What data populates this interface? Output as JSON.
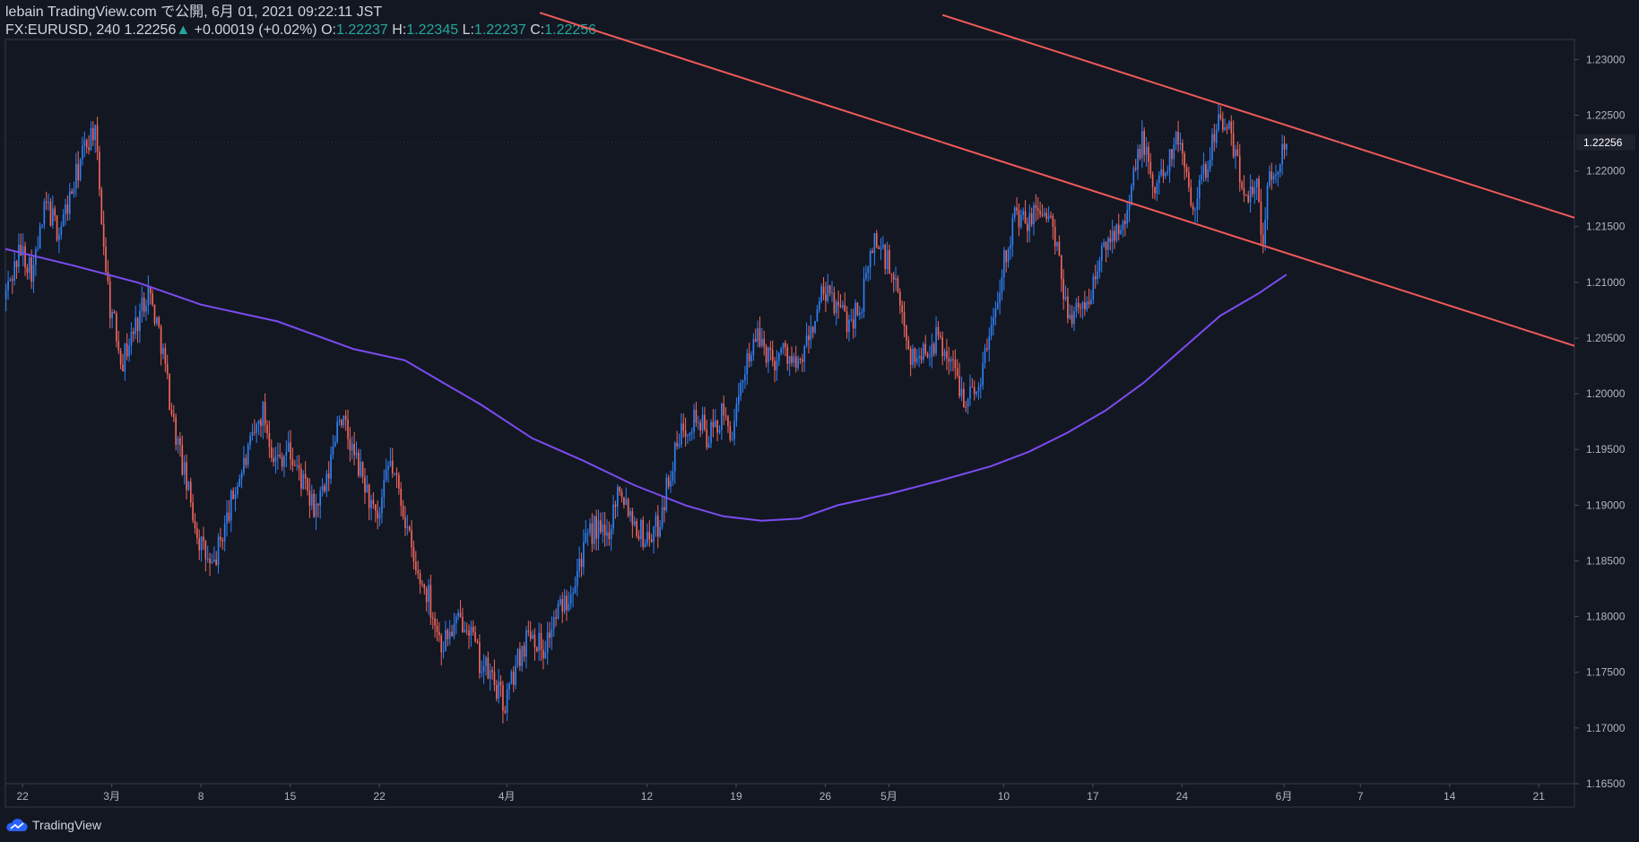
{
  "header": {
    "published_line": "lebain TradingView.com で公開, 6月 01, 2021 09:22:11 JST",
    "symbol": "FX:EURUSD, 240",
    "last_price": "1.22256",
    "arrow": "▲",
    "change": "+0.00019 (+0.02%)",
    "o_label": "O:",
    "o_value": "1.22237",
    "h_label": "H:",
    "h_value": "1.22345",
    "l_label": "L:",
    "l_value": "1.22237",
    "c_label": "C:",
    "c_value": "1.22256"
  },
  "footer": {
    "brand": "TradingView"
  },
  "colors": {
    "background": "#131722",
    "up": "#2f81f7",
    "down": "#f0665c",
    "trendline": "#f05a5a",
    "ma": "#7b4cf0",
    "axis_text": "#b2b5be",
    "price_tag_bg": "#1e222d"
  },
  "icons": {
    "logo": "tradingview-cloud-icon",
    "arrow": "up-triangle-icon"
  },
  "chart_data": {
    "type": "candlestick",
    "symbol": "FX:EURUSD",
    "interval": "240",
    "ylim": [
      1.165,
      1.2318
    ],
    "y_ticks": [
      "1.16500",
      "1.17000",
      "1.17500",
      "1.18000",
      "1.18500",
      "1.19000",
      "1.19500",
      "1.20000",
      "1.20500",
      "1.21000",
      "1.21500",
      "1.22000",
      "1.22500",
      "1.23000"
    ],
    "x_ticks": [
      {
        "label": "22",
        "day": 0
      },
      {
        "label": "3月",
        "day": 7
      },
      {
        "label": "8",
        "day": 14
      },
      {
        "label": "15",
        "day": 21
      },
      {
        "label": "22",
        "day": 28
      },
      {
        "label": "4月",
        "day": 38
      },
      {
        "label": "12",
        "day": 49
      },
      {
        "label": "19",
        "day": 56
      },
      {
        "label": "26",
        "day": 63
      },
      {
        "label": "5月",
        "day": 68
      },
      {
        "label": "10",
        "day": 77
      },
      {
        "label": "17",
        "day": 84
      },
      {
        "label": "24",
        "day": 91
      },
      {
        "label": "6月",
        "day": 99
      },
      {
        "label": "7",
        "day": 105
      },
      {
        "label": "14",
        "day": 112
      },
      {
        "label": "21",
        "day": 119
      }
    ],
    "x_range_days": [
      -1.35,
      121.8
    ],
    "candles_per_day": 6,
    "last_candle_day": 99.2,
    "current_price": 1.22256,
    "current_price_label": "1.22256",
    "price_path": [
      [
        -1.3,
        1.2085
      ],
      [
        0,
        1.213
      ],
      [
        1,
        1.211
      ],
      [
        2,
        1.217
      ],
      [
        3,
        1.2145
      ],
      [
        4,
        1.218
      ],
      [
        5,
        1.222
      ],
      [
        5.8,
        1.224
      ],
      [
        6.5,
        1.214
      ],
      [
        7,
        1.208
      ],
      [
        8,
        1.203
      ],
      [
        9,
        1.206
      ],
      [
        10,
        1.2095
      ],
      [
        11,
        1.205
      ],
      [
        12,
        1.1975
      ],
      [
        13,
        1.192
      ],
      [
        14,
        1.187
      ],
      [
        15,
        1.184
      ],
      [
        16,
        1.188
      ],
      [
        17,
        1.192
      ],
      [
        18,
        1.195
      ],
      [
        19,
        1.1985
      ],
      [
        20,
        1.194
      ],
      [
        21,
        1.195
      ],
      [
        22,
        1.1925
      ],
      [
        23,
        1.1895
      ],
      [
        24,
        1.1915
      ],
      [
        25,
        1.1985
      ],
      [
        26,
        1.195
      ],
      [
        27,
        1.192
      ],
      [
        28,
        1.188
      ],
      [
        29,
        1.194
      ],
      [
        30,
        1.19
      ],
      [
        31,
        1.184
      ],
      [
        32,
        1.182
      ],
      [
        33,
        1.1775
      ],
      [
        34,
        1.179
      ],
      [
        35,
        1.18
      ],
      [
        36,
        1.176
      ],
      [
        37,
        1.1745
      ],
      [
        38,
        1.172
      ],
      [
        39,
        1.176
      ],
      [
        40,
        1.179
      ],
      [
        41,
        1.177
      ],
      [
        42,
        1.18
      ],
      [
        43,
        1.182
      ],
      [
        44,
        1.1855
      ],
      [
        45,
        1.188
      ],
      [
        46,
        1.187
      ],
      [
        47,
        1.192
      ],
      [
        48,
        1.189
      ],
      [
        49,
        1.187
      ],
      [
        50,
        1.188
      ],
      [
        51,
        1.193
      ],
      [
        52,
        1.197
      ],
      [
        53,
        1.198
      ],
      [
        54,
        1.196
      ],
      [
        55,
        1.198
      ],
      [
        56,
        1.1965
      ],
      [
        57,
        1.2035
      ],
      [
        58,
        1.205
      ],
      [
        59,
        1.203
      ],
      [
        60,
        1.204
      ],
      [
        61,
        1.202
      ],
      [
        62,
        1.2055
      ],
      [
        63,
        1.209
      ],
      [
        64,
        1.208
      ],
      [
        65,
        1.2065
      ],
      [
        66,
        1.208
      ],
      [
        67,
        1.214
      ],
      [
        68,
        1.212
      ],
      [
        69,
        1.208
      ],
      [
        70,
        1.203
      ],
      [
        71,
        1.204
      ],
      [
        72,
        1.205
      ],
      [
        73,
        1.203
      ],
      [
        74,
        1.2
      ],
      [
        75,
        1.2
      ],
      [
        76,
        1.205
      ],
      [
        77,
        1.211
      ],
      [
        78,
        1.216
      ],
      [
        79,
        1.215
      ],
      [
        80,
        1.217
      ],
      [
        81,
        1.215
      ],
      [
        82,
        1.208
      ],
      [
        83,
        1.207
      ],
      [
        84,
        1.209
      ],
      [
        85,
        1.213
      ],
      [
        86,
        1.215
      ],
      [
        87,
        1.217
      ],
      [
        88,
        1.223
      ],
      [
        89,
        1.218
      ],
      [
        90,
        1.221
      ],
      [
        91,
        1.223
      ],
      [
        92,
        1.217
      ],
      [
        93,
        1.22
      ],
      [
        94,
        1.225
      ],
      [
        95,
        1.223
      ],
      [
        96,
        1.218
      ],
      [
        97,
        1.219
      ],
      [
        97.5,
        1.214
      ],
      [
        98,
        1.219
      ],
      [
        98.6,
        1.22
      ],
      [
        99.2,
        1.22256
      ]
    ],
    "overlays": [
      {
        "type": "trendline",
        "name": "upper-channel-line",
        "start": [
          72.2,
          1.234
        ],
        "end": [
          121.8,
          1.2158
        ]
      },
      {
        "type": "trendline",
        "name": "lower-channel-line",
        "start": [
          40.6,
          1.2342
        ],
        "end": [
          121.8,
          1.2043
        ]
      },
      {
        "type": "moving-average",
        "name": "moving-average-line",
        "points": [
          [
            -1.35,
            1.213
          ],
          [
            4,
            1.2115
          ],
          [
            9,
            1.21
          ],
          [
            14,
            1.208
          ],
          [
            20,
            1.2065
          ],
          [
            26,
            1.204
          ],
          [
            30,
            1.203
          ],
          [
            33,
            1.201
          ],
          [
            36,
            1.199
          ],
          [
            40,
            1.196
          ],
          [
            44,
            1.194
          ],
          [
            48,
            1.1918
          ],
          [
            52,
            1.19
          ],
          [
            55,
            1.189
          ],
          [
            58,
            1.1886
          ],
          [
            61,
            1.1888
          ],
          [
            64,
            1.19
          ],
          [
            68,
            1.191
          ],
          [
            72,
            1.1922
          ],
          [
            76,
            1.1935
          ],
          [
            79,
            1.1948
          ],
          [
            82,
            1.1965
          ],
          [
            85,
            1.1985
          ],
          [
            88,
            1.201
          ],
          [
            91,
            1.204
          ],
          [
            94,
            1.207
          ],
          [
            97,
            1.209
          ],
          [
            99.2,
            1.2107
          ]
        ]
      }
    ]
  }
}
